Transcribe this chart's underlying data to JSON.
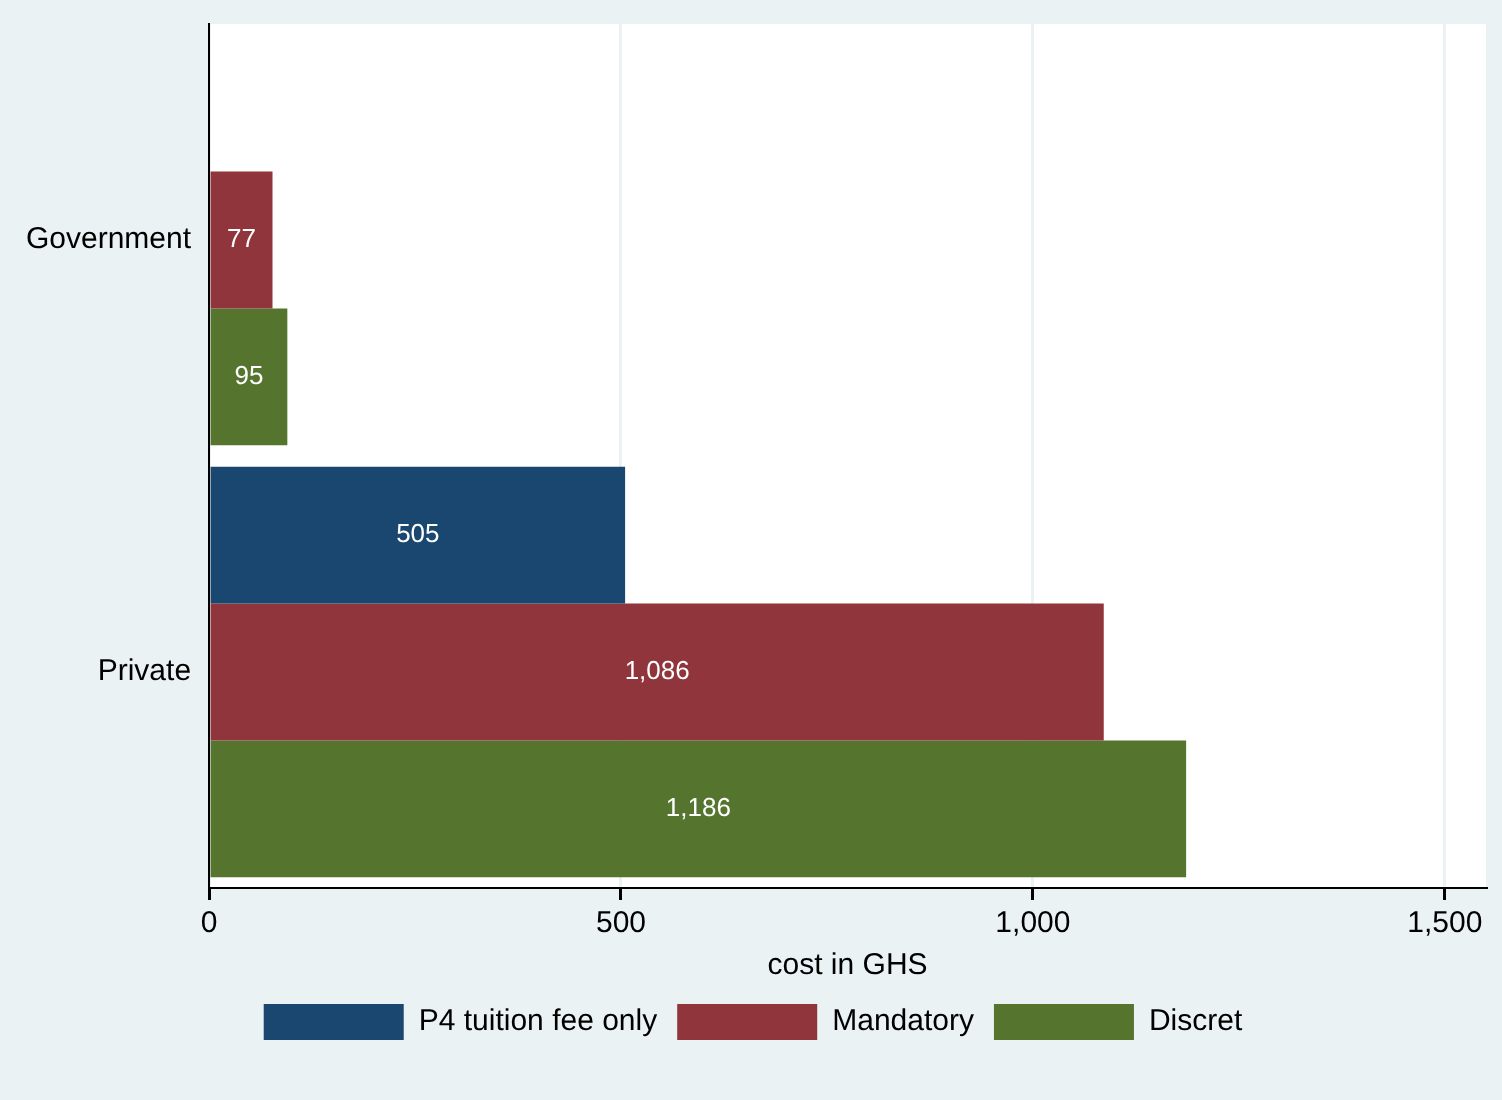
{
  "chart_data": {
    "type": "bar",
    "orientation": "horizontal",
    "xlabel": "cost in GHS",
    "categories": [
      "Government",
      "Private"
    ],
    "series": [
      {
        "name": "P4 tuition fee only",
        "color": "#1a476f",
        "values": [
          null,
          505
        ],
        "value_labels": [
          null,
          "505"
        ]
      },
      {
        "name": "Mandatory",
        "color": "#90353b",
        "values": [
          77,
          1086
        ],
        "value_labels": [
          "77",
          "1,086"
        ]
      },
      {
        "name": "Discret",
        "color": "#55752f",
        "values": [
          95,
          1186
        ],
        "value_labels": [
          "95",
          "1,186"
        ]
      }
    ],
    "xlim": [
      0,
      1550
    ],
    "xticks": [
      0,
      500,
      {
        "value": 1000,
        "label": "1,000"
      },
      {
        "value": 1500,
        "label": "1,500"
      }
    ],
    "grid": "x",
    "legend": "bottom"
  }
}
